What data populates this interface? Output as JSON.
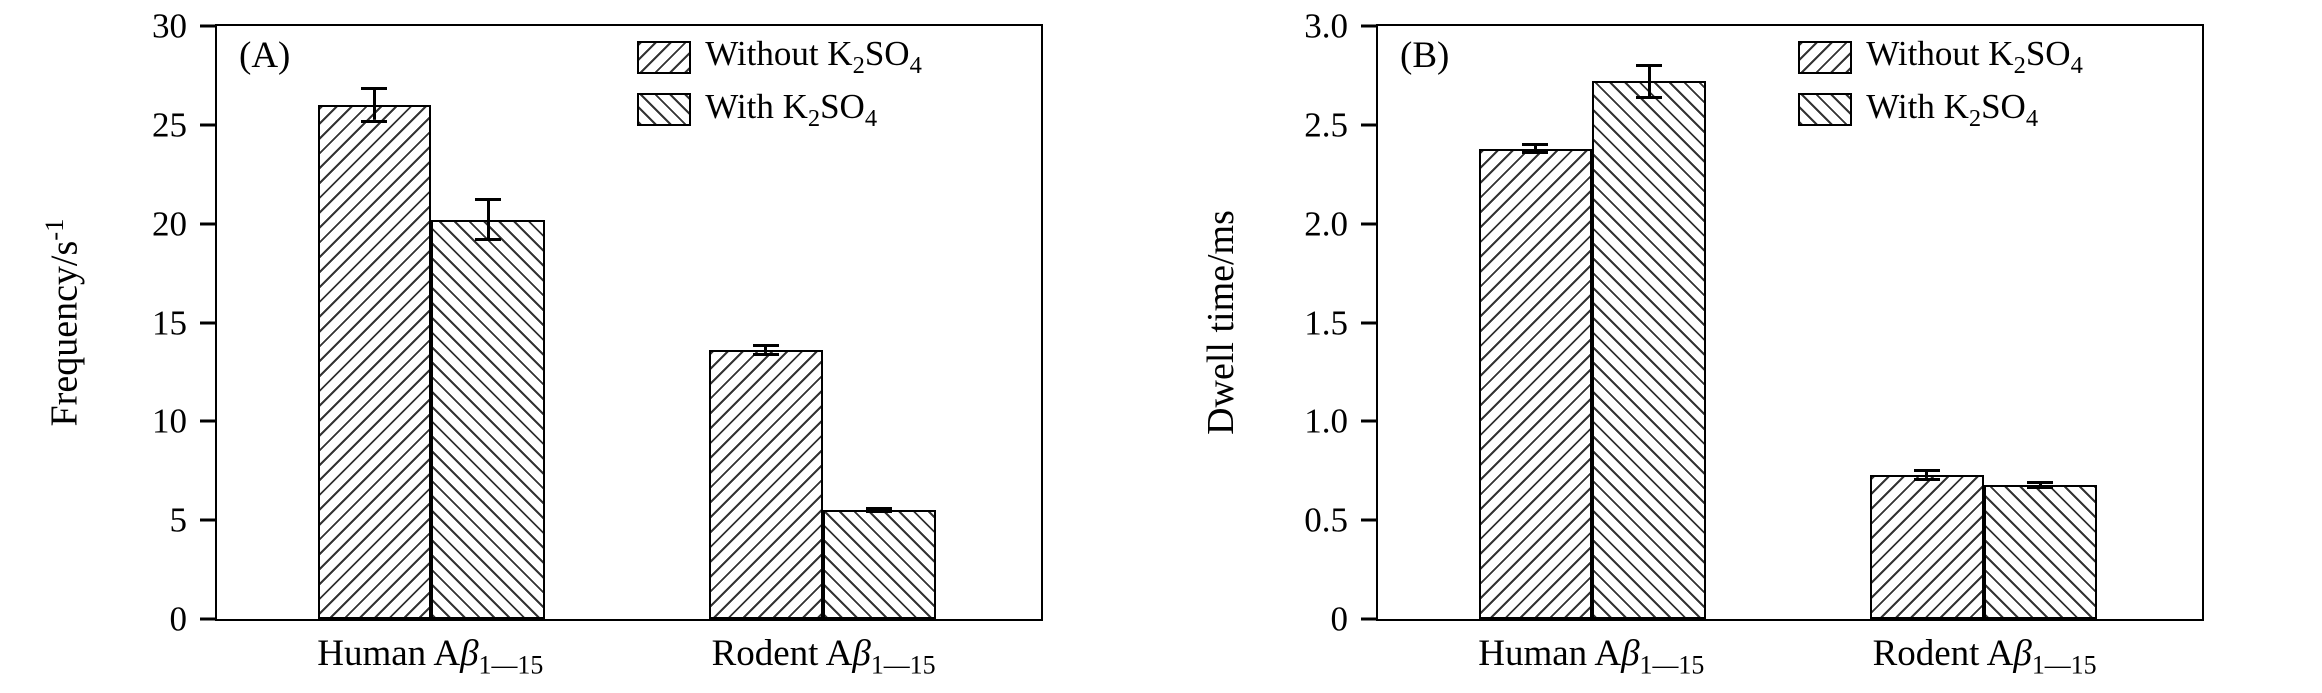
{
  "figure": {
    "background": "#ffffff"
  },
  "colors": {
    "axis": "#000000",
    "bar_fill": "#ffffff",
    "hatch": "#333333"
  },
  "chart_data": [
    {
      "type": "bar",
      "panel_label": "(A)",
      "title": "",
      "xlabel": "",
      "ylabel": "Frequency/s^{-1}",
      "ylim": [
        0,
        30
      ],
      "grid": false,
      "legend_position": "top-right",
      "yticks": [
        {
          "v": 0,
          "label": "0"
        },
        {
          "v": 5,
          "label": "5"
        },
        {
          "v": 10,
          "label": "10"
        },
        {
          "v": 15,
          "label": "15"
        },
        {
          "v": 20,
          "label": "20"
        },
        {
          "v": 25,
          "label": "25"
        },
        {
          "v": 30,
          "label": "30"
        }
      ],
      "categories": [
        "Human A*β*_{1—15}",
        "Rodent A*β*_{1—15}"
      ],
      "series": [
        {
          "name": "Without K_{2}SO_{4}",
          "hatch": "forward",
          "values": [
            26.0,
            13.6
          ],
          "errors": [
            0.9,
            0.3
          ]
        },
        {
          "name": "With K_{2}SO_{4}",
          "hatch": "backward",
          "values": [
            20.2,
            5.5
          ],
          "errors": [
            1.1,
            0.15
          ]
        }
      ]
    },
    {
      "type": "bar",
      "panel_label": "(B)",
      "title": "",
      "xlabel": "",
      "ylabel": "Dwell time/ms",
      "ylim": [
        0,
        3.0
      ],
      "grid": false,
      "legend_position": "top-right",
      "yticks": [
        {
          "v": 0,
          "label": "0"
        },
        {
          "v": 0.5,
          "label": "0.5"
        },
        {
          "v": 1.0,
          "label": "1.0"
        },
        {
          "v": 1.5,
          "label": "1.5"
        },
        {
          "v": 2.0,
          "label": "2.0"
        },
        {
          "v": 2.5,
          "label": "2.5"
        },
        {
          "v": 3.0,
          "label": "3.0"
        }
      ],
      "categories": [
        "Human A*β*_{1—15}",
        "Rodent A*β*_{1—15}"
      ],
      "series": [
        {
          "name": "Without K_{2}SO_{4}",
          "hatch": "forward",
          "values": [
            2.38,
            0.73
          ],
          "errors": [
            0.03,
            0.03
          ]
        },
        {
          "name": "With K_{2}SO_{4}",
          "hatch": "backward",
          "values": [
            2.72,
            0.68
          ],
          "errors": [
            0.09,
            0.02
          ]
        }
      ]
    }
  ]
}
